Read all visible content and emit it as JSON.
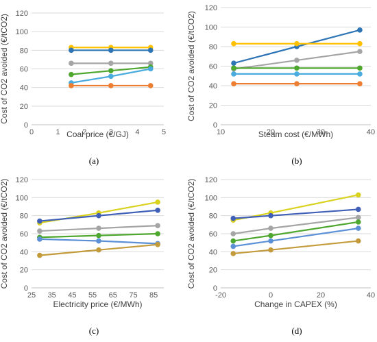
{
  "chart_data": [
    {
      "type": "line",
      "panel_label": "(a)",
      "xlabel": "Coal price (€/GJ)",
      "ylabel": "Cost of CO2 avoided (€/tCO2)",
      "xlim": [
        0,
        5
      ],
      "xticks": [
        0,
        1,
        2,
        3,
        4,
        5
      ],
      "ylim": [
        0,
        120
      ],
      "yticks": [
        0,
        20,
        40,
        60,
        80,
        100,
        120
      ],
      "grid": "horizontal",
      "series": [
        {
          "color": "#ffc000",
          "x": [
            1.5,
            3,
            4.5
          ],
          "y": [
            83,
            83,
            83
          ]
        },
        {
          "color": "#2e75b6",
          "x": [
            1.5,
            3,
            4.5
          ],
          "y": [
            80,
            80,
            80
          ]
        },
        {
          "color": "#a5a5a5",
          "x": [
            1.5,
            3,
            4.5
          ],
          "y": [
            66,
            66,
            66
          ]
        },
        {
          "color": "#4ea72e",
          "x": [
            1.5,
            3,
            4.5
          ],
          "y": [
            54,
            58,
            62
          ]
        },
        {
          "color": "#4aacde",
          "x": [
            1.5,
            3,
            4.5
          ],
          "y": [
            45,
            52,
            60
          ]
        },
        {
          "color": "#ed7d31",
          "x": [
            1.5,
            3,
            4.5
          ],
          "y": [
            42,
            42,
            42
          ]
        }
      ]
    },
    {
      "type": "line",
      "panel_label": "(b)",
      "xlabel": "Steam cost (€/MWh)",
      "ylabel": "Cost of CO2 avoided (€/tCO2)",
      "xlim": [
        10,
        40
      ],
      "xticks": [
        10,
        20,
        30,
        40
      ],
      "ylim": [
        0,
        120
      ],
      "yticks": [
        0,
        20,
        40,
        60,
        80,
        100,
        120
      ],
      "grid": "horizontal",
      "series": [
        {
          "color": "#2e75b6",
          "x": [
            12.6,
            25.2,
            37.8
          ],
          "y": [
            63,
            80,
            97
          ]
        },
        {
          "color": "#ffc000",
          "x": [
            12.6,
            25.2,
            37.8
          ],
          "y": [
            83,
            83,
            83
          ]
        },
        {
          "color": "#a5a5a5",
          "x": [
            12.6,
            25.2,
            37.8
          ],
          "y": [
            57,
            66,
            75
          ]
        },
        {
          "color": "#4ea72e",
          "x": [
            12.6,
            25.2,
            37.8
          ],
          "y": [
            58,
            58,
            58
          ]
        },
        {
          "color": "#4aacde",
          "x": [
            12.6,
            25.2,
            37.8
          ],
          "y": [
            52,
            52,
            52
          ]
        },
        {
          "color": "#ed7d31",
          "x": [
            12.6,
            25.2,
            37.8
          ],
          "y": [
            42,
            42,
            42
          ]
        }
      ]
    },
    {
      "type": "line",
      "panel_label": "(c)",
      "xlabel": "Electricity price (€/MWh)",
      "ylabel": "Cost of CO2 avoided (€/tCO2)",
      "xlim": [
        25,
        90
      ],
      "xticks": [
        25,
        35,
        45,
        55,
        65,
        75,
        85
      ],
      "ylim": [
        0,
        120
      ],
      "yticks": [
        0,
        20,
        40,
        60,
        80,
        100,
        120
      ],
      "grid": "horizontal",
      "series": [
        {
          "color": "#d9d21f",
          "x": [
            29,
            58,
            87
          ],
          "y": [
            72,
            83,
            95
          ]
        },
        {
          "color": "#4060b8",
          "x": [
            29,
            58,
            87
          ],
          "y": [
            74,
            80,
            86
          ]
        },
        {
          "color": "#a5a5a5",
          "x": [
            29,
            58,
            87
          ],
          "y": [
            63,
            66,
            69
          ]
        },
        {
          "color": "#4ea72e",
          "x": [
            29,
            58,
            87
          ],
          "y": [
            56,
            58,
            60
          ]
        },
        {
          "color": "#5b8fd6",
          "x": [
            29,
            58,
            87
          ],
          "y": [
            54,
            52,
            49
          ]
        },
        {
          "color": "#c39b3b",
          "x": [
            29,
            58,
            87
          ],
          "y": [
            36,
            42,
            48
          ]
        }
      ]
    },
    {
      "type": "line",
      "panel_label": "(d)",
      "xlabel": "Change in CAPEX (%)",
      "ylabel": "Cost of CO2 avoided (€/tCO2)",
      "xlim": [
        -20,
        40
      ],
      "xticks": [
        -20,
        0,
        20,
        40
      ],
      "ylim": [
        0,
        120
      ],
      "yticks": [
        0,
        20,
        40,
        60,
        80,
        100,
        120
      ],
      "grid": "horizontal",
      "series": [
        {
          "color": "#d9d21f",
          "x": [
            -15,
            0,
            35
          ],
          "y": [
            75,
            83,
            103
          ]
        },
        {
          "color": "#4060b8",
          "x": [
            -15,
            0,
            35
          ],
          "y": [
            77,
            80,
            87
          ]
        },
        {
          "color": "#a5a5a5",
          "x": [
            -15,
            0,
            35
          ],
          "y": [
            60,
            66,
            78
          ]
        },
        {
          "color": "#4ea72e",
          "x": [
            -15,
            0,
            35
          ],
          "y": [
            52,
            58,
            73
          ]
        },
        {
          "color": "#5b8fd6",
          "x": [
            -15,
            0,
            35
          ],
          "y": [
            46,
            52,
            66
          ]
        },
        {
          "color": "#c39b3b",
          "x": [
            -15,
            0,
            35
          ],
          "y": [
            38,
            42,
            52
          ]
        }
      ]
    }
  ]
}
